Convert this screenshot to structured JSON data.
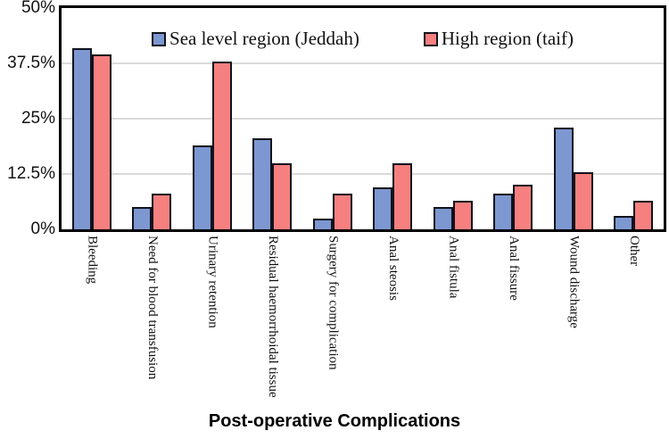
{
  "chart_data": {
    "type": "bar",
    "title": "Post-operative Complications",
    "categories": [
      "Bleeding",
      "Need for blood transfusion",
      "Urinary retention",
      "Residual haemorrhoidal tissue",
      "Surgery for complication",
      "Anal steosis",
      "Anal fistula",
      "Anal fissure",
      "Wound discharge",
      "Other"
    ],
    "series": [
      {
        "name": "Sea level region (Jeddah)",
        "color": "#7d97d1",
        "values": [
          41,
          5,
          19,
          20.5,
          2.5,
          9.5,
          5,
          8,
          23,
          3
        ]
      },
      {
        "name": "High region (taif)",
        "color": "#f5807f",
        "values": [
          39.5,
          8,
          38,
          15,
          8,
          15,
          6.5,
          10,
          13,
          6.5
        ]
      }
    ],
    "xlabel": "Post-operative Complications",
    "ylabel": "",
    "ylim": [
      0,
      50
    ],
    "yticks": [
      {
        "label": "50%",
        "value": 50
      },
      {
        "label": "37.5%",
        "value": 37.5
      },
      {
        "label": "25%",
        "value": 25
      },
      {
        "label": "12.5%",
        "value": 12.5
      },
      {
        "label": "0%",
        "value": 0
      }
    ],
    "gridline_values": [
      12.5,
      25,
      37.5
    ],
    "grid": true,
    "legend_position": "top-inside",
    "bar_outline_color": "#10121c",
    "gridline_color": "#dadada",
    "frame_color": "#000000"
  }
}
